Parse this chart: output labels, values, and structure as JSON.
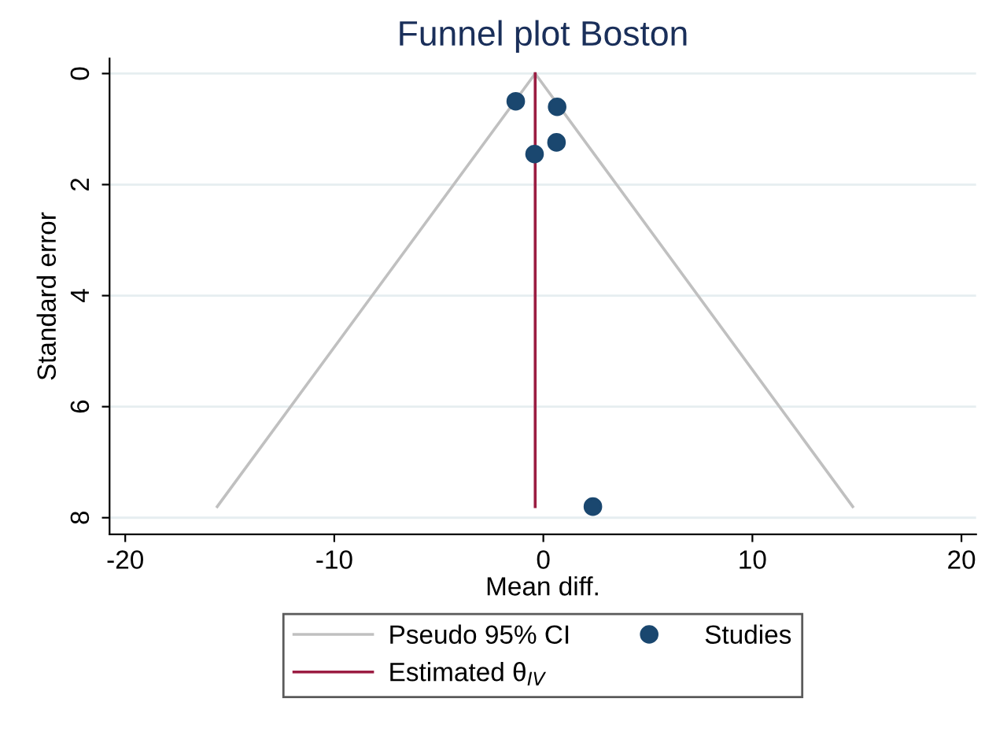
{
  "chart_data": {
    "type": "scatter",
    "title": "Funnel plot Boston",
    "xlabel": "Mean diff.",
    "ylabel": "Standard error",
    "series": [
      {
        "name": "Pseudo 95% CI",
        "type": "line",
        "marker": "none",
        "color": "#c0c0c0",
        "x": [
          -15.6,
          -0.39,
          14.8
        ],
        "values": [
          7.8,
          0,
          7.8
        ]
      },
      {
        "name": "Estimated θ$_{IV}$",
        "type": "line",
        "marker": "none",
        "color": "#9b1d42",
        "x": [
          -0.39,
          -0.39
        ],
        "values": [
          0,
          7.8
        ]
      },
      {
        "name": "Studies",
        "marker": "circle",
        "color": "#1a476f",
        "x": [
          -1.32,
          0.66,
          0.63,
          -0.42,
          2.37
        ],
        "values": [
          0.5,
          0.6,
          1.24,
          1.45,
          7.8
        ]
      }
    ],
    "xlim": [
      -20.75,
      20.7
    ],
    "xticks": [
      -20,
      -10,
      0,
      10,
      20
    ],
    "ylim": [
      8.3,
      -0.27
    ],
    "yticks": [
      0,
      2,
      4,
      6,
      8
    ],
    "grid": "y",
    "legend": "bottom",
    "line_style": "solid"
  }
}
